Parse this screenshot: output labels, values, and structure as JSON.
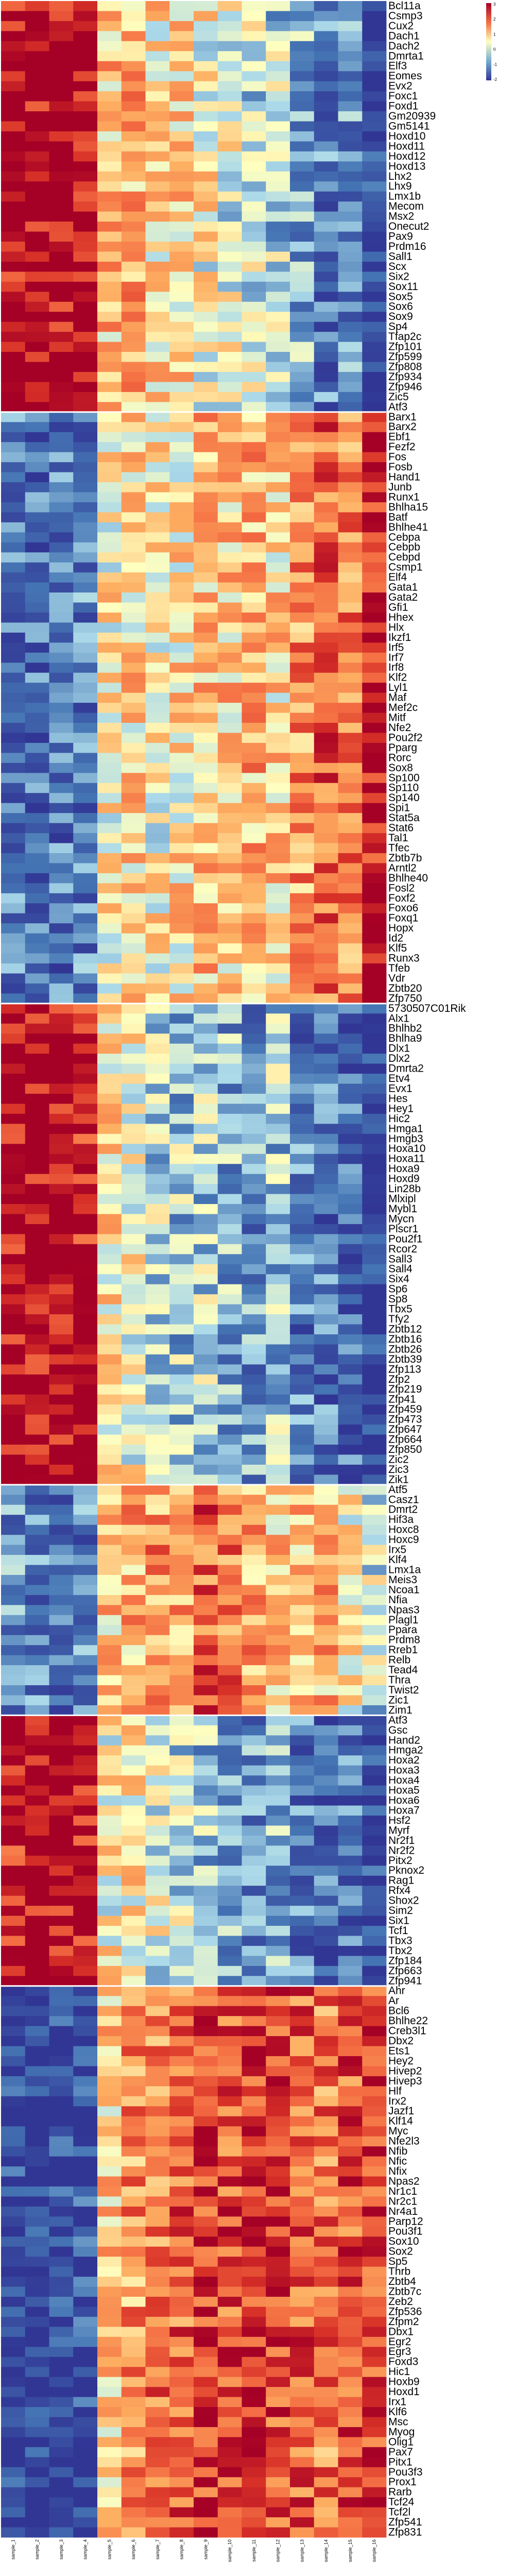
{
  "chart_data": {
    "type": "heatmap",
    "title": "",
    "xlabel": "",
    "ylabel": "",
    "color_scale": {
      "low": "#313695",
      "mid": "#ffffbf",
      "high": "#a50026",
      "range": [
        -2,
        2
      ],
      "ticks": [
        "3",
        "2",
        "1",
        "0",
        "-1",
        "-2"
      ]
    },
    "columns": [
      "sample_1",
      "sample_2",
      "sample_3",
      "sample_4",
      "sample_5",
      "sample_6",
      "sample_7",
      "sample_8",
      "sample_9",
      "sample_10",
      "sample_11",
      "sample_12",
      "sample_13",
      "sample_14",
      "sample_15",
      "sample_16"
    ],
    "clusters": [
      {
        "genes": [
          "Bcl11a",
          "Csmp3",
          "Cux2",
          "Dach1",
          "Dach2",
          "Dmrta1",
          "Elf3",
          "Eomes",
          "Evx2",
          "Foxc1",
          "Foxd1",
          "Gm20939",
          "Gm5141",
          "Hoxd10",
          "Hoxd11",
          "Hoxd12",
          "Hoxd13",
          "Lhx2",
          "Lhx9",
          "Lmx1b",
          "Mecom",
          "Msx2",
          "Onecut2",
          "Pax9",
          "Prdm16",
          "Sall1",
          "Scx",
          "Six2",
          "Sox11",
          "Sox5",
          "Sox6",
          "Sox9",
          "Sp4",
          "Tfap2c",
          "Zfp101",
          "Zfp599",
          "Zfp808",
          "Zfp934",
          "Zfp946",
          "Zic5",
          "Atf3"
        ],
        "profile": [
          2.0,
          2.0,
          2.0,
          2.0,
          0.5,
          0.6,
          0.2,
          0.3,
          0.0,
          -0.2,
          -0.4,
          -0.5,
          -0.8,
          -1.2,
          -1.0,
          -1.8
        ]
      },
      {
        "genes": [
          "Barx1",
          "Barx2",
          "Ebf1",
          "Fezf2",
          "Fos",
          "Fosb",
          "Hand1",
          "Junb",
          "Runx1",
          "Bhlha15",
          "Batf",
          "Bhlhe41",
          "Cebpa",
          "Cebpb",
          "Cebpd",
          "Csmp1",
          "Elf4",
          "Gata1",
          "Gata2",
          "Gfi1",
          "Hhex",
          "Hlx",
          "Ikzf1",
          "Irf5",
          "Irf7",
          "Irf8",
          "Klf2",
          "Lyl1",
          "Maf",
          "Mef2c",
          "Mitf",
          "Nfe2",
          "Pou2f2",
          "Pparg",
          "Rorc",
          "Sox8",
          "Sp100",
          "Sp110",
          "Sp140",
          "Spi1",
          "Stat5a",
          "Stat6",
          "Tal1",
          "Tfec",
          "Zbtb7b",
          "Arntl2",
          "Bhlhe40",
          "Fosl2",
          "Foxf2",
          "Foxo6",
          "Foxq1",
          "Hopx",
          "Id2",
          "Klf5",
          "Runx3",
          "Tfeb",
          "Vdr",
          "Zbtb20",
          "Zfp750"
        ],
        "profile": [
          -1.2,
          -1.4,
          -1.3,
          -1.2,
          0.1,
          0.3,
          0.0,
          0.2,
          0.5,
          0.4,
          0.6,
          0.3,
          0.8,
          1.2,
          1.0,
          1.8
        ]
      },
      {
        "genes": [
          "5730507C01Rik",
          "Alx1",
          "Bhlhb2",
          "Bhlha9",
          "Dlx1",
          "Dlx2",
          "Dmrta2",
          "Etv4",
          "Evx1",
          "Hes",
          "Hey1",
          "Hic2",
          "Hmga1",
          "Hmgb3",
          "Hoxa10",
          "Hoxa11",
          "Hoxa9",
          "Hoxd9",
          "Lin28b",
          "Mlxipl",
          "Mybl1",
          "Mycn",
          "Plscr1",
          "Pou2f1",
          "Rcor2",
          "Sall3",
          "Sall4",
          "Six4",
          "Sp6",
          "Sp8",
          "Tbx5",
          "Tfy2",
          "Zbtb12",
          "Zbtb16",
          "Zbtb26",
          "Zbtb39",
          "Zfp113",
          "Zfp2",
          "Zfp219",
          "Zfp41",
          "Zfp459",
          "Zfp473",
          "Zfp647",
          "Zfp664",
          "Zfp850",
          "Zic2",
          "Zic3",
          "Zik1"
        ],
        "profile": [
          2.0,
          2.0,
          2.0,
          1.8,
          0.2,
          0.0,
          -0.4,
          -0.6,
          -0.5,
          -0.8,
          -1.0,
          -0.6,
          -1.2,
          -1.3,
          -1.4,
          -1.9
        ]
      },
      {
        "genes": [
          "Atf5",
          "Casz1",
          "Dmrt2",
          "Hif3a",
          "Hoxc8",
          "Hoxc9",
          "Irx5",
          "Klf4",
          "Lmx1a",
          "Meis3",
          "Ncoa1",
          "Nfia",
          "Npas3",
          "Plagl1",
          "Ppara",
          "Prdm8",
          "Rreb1",
          "Relb",
          "Tead4",
          "Thra",
          "Twist2",
          "Zic1",
          "Zim1"
        ],
        "profile": [
          -1.0,
          -1.2,
          -1.4,
          -1.2,
          0.4,
          0.6,
          0.8,
          0.6,
          1.2,
          1.0,
          0.7,
          0.4,
          0.5,
          0.6,
          0.0,
          -0.4
        ]
      },
      {
        "genes": [
          "Atf3",
          "Gsc",
          "Hand2",
          "Hmga2",
          "Hoxa2",
          "Hoxa3",
          "Hoxa4",
          "Hoxa5",
          "Hoxa6",
          "Hoxa7",
          "Hsf2",
          "Myrf",
          "Nr2f1",
          "Nr2f2",
          "Pitx2",
          "Pknox2",
          "Rag1",
          "Rfx4",
          "Shox2",
          "Sim2",
          "Six1",
          "Tcf1",
          "Tbx3",
          "Tbx2",
          "Zfp184",
          "Zfp663",
          "Zfp941"
        ],
        "profile": [
          1.8,
          2.0,
          2.0,
          1.9,
          0.0,
          0.2,
          -0.2,
          -0.4,
          -0.6,
          -0.8,
          -1.0,
          -0.8,
          -1.2,
          -1.4,
          -1.3,
          -1.8
        ]
      },
      {
        "genes": [
          "Ahr",
          "Ar",
          "Bcl6",
          "Bhlhe22",
          "Creb3l1",
          "Dbx2",
          "Ets1",
          "Hey2",
          "Hivep2",
          "Hivep3",
          "Hlf",
          "Irx2",
          "Jazf1",
          "Klf14",
          "Myc",
          "Nfe2l3",
          "Nfib",
          "Nfic",
          "Nfix",
          "Npas2",
          "Nr1c1",
          "Nr2c1",
          "Nr4a1",
          "Parp12",
          "Pou3f1",
          "Sox10",
          "Sox2",
          "Sp5",
          "Thrb",
          "Zbtb4",
          "Zbtb7c",
          "Zeb2",
          "Zfp536",
          "Zfpm2",
          "Dbx1",
          "Egr2",
          "Egr3",
          "Foxd3",
          "Hic1",
          "Hoxb9",
          "Hoxd1",
          "Irx1",
          "Klf6",
          "Msc",
          "Myog",
          "Olig1",
          "Pax7",
          "Pitx1",
          "Pou3f3",
          "Prox1",
          "Rarb",
          "Tcf24",
          "Tcf2l",
          "Zfp541",
          "Zfp831"
        ],
        "profile": [
          -1.8,
          -1.9,
          -1.8,
          -1.7,
          0.4,
          0.8,
          1.0,
          1.2,
          1.5,
          1.3,
          1.6,
          1.4,
          1.2,
          1.0,
          1.3,
          1.5
        ]
      }
    ]
  }
}
